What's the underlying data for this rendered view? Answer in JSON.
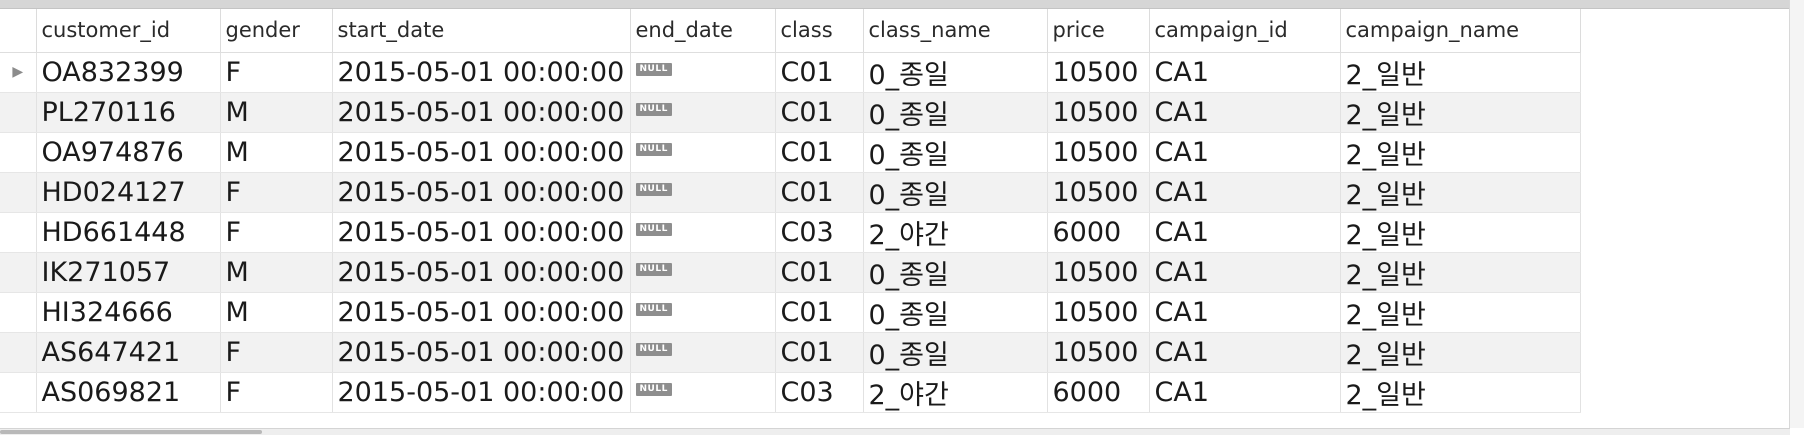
{
  "columns": [
    "customer_id",
    "gender",
    "start_date",
    "end_date",
    "class",
    "class_name",
    "price",
    "campaign_id",
    "campaign_name"
  ],
  "row_marker": "▶",
  "rows": [
    {
      "customer_id": "OA832399",
      "gender": "F",
      "start_date": "2015-05-01 00:00:00",
      "end_date": "NULL",
      "class": "C01",
      "class_name": "0_종일",
      "price": "10500",
      "campaign_id": "CA1",
      "campaign_name": "2_일반"
    },
    {
      "customer_id": "PL270116",
      "gender": "M",
      "start_date": "2015-05-01 00:00:00",
      "end_date": "NULL",
      "class": "C01",
      "class_name": "0_종일",
      "price": "10500",
      "campaign_id": "CA1",
      "campaign_name": "2_일반"
    },
    {
      "customer_id": "OA974876",
      "gender": "M",
      "start_date": "2015-05-01 00:00:00",
      "end_date": "NULL",
      "class": "C01",
      "class_name": "0_종일",
      "price": "10500",
      "campaign_id": "CA1",
      "campaign_name": "2_일반"
    },
    {
      "customer_id": "HD024127",
      "gender": "F",
      "start_date": "2015-05-01 00:00:00",
      "end_date": "NULL",
      "class": "C01",
      "class_name": "0_종일",
      "price": "10500",
      "campaign_id": "CA1",
      "campaign_name": "2_일반"
    },
    {
      "customer_id": "HD661448",
      "gender": "F",
      "start_date": "2015-05-01 00:00:00",
      "end_date": "NULL",
      "class": "C03",
      "class_name": "2_야간",
      "price": "6000",
      "campaign_id": "CA1",
      "campaign_name": "2_일반"
    },
    {
      "customer_id": "IK271057",
      "gender": "M",
      "start_date": "2015-05-01 00:00:00",
      "end_date": "NULL",
      "class": "C01",
      "class_name": "0_종일",
      "price": "10500",
      "campaign_id": "CA1",
      "campaign_name": "2_일반"
    },
    {
      "customer_id": "HI324666",
      "gender": "M",
      "start_date": "2015-05-01 00:00:00",
      "end_date": "NULL",
      "class": "C01",
      "class_name": "0_종일",
      "price": "10500",
      "campaign_id": "CA1",
      "campaign_name": "2_일반"
    },
    {
      "customer_id": "AS647421",
      "gender": "F",
      "start_date": "2015-05-01 00:00:00",
      "end_date": "NULL",
      "class": "C01",
      "class_name": "0_종일",
      "price": "10500",
      "campaign_id": "CA1",
      "campaign_name": "2_일반"
    },
    {
      "customer_id": "AS069821",
      "gender": "F",
      "start_date": "2015-05-01 00:00:00",
      "end_date": "NULL",
      "class": "C03",
      "class_name": "2_야간",
      "price": "6000",
      "campaign_id": "CA1",
      "campaign_name": "2_일반"
    }
  ],
  "colors": {
    "null_badge": "#8e8e8e",
    "row_alt": "#f2f2f2",
    "grid_line": "#e2e2e2"
  },
  "icons": {
    "row_marker": "current-row-triangle-icon"
  }
}
